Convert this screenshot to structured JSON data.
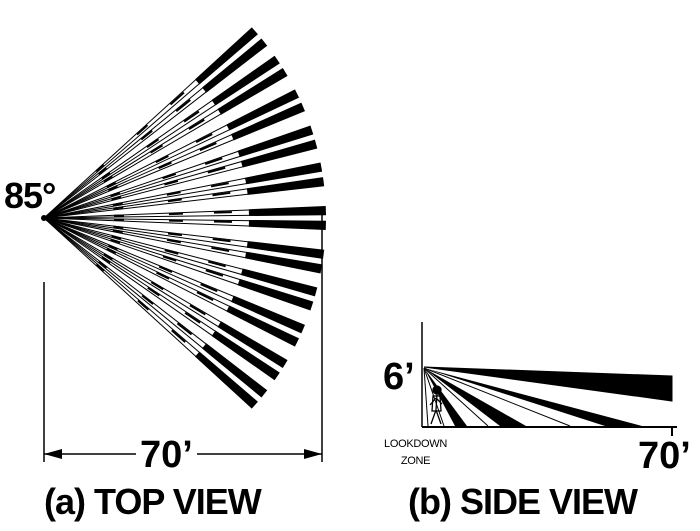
{
  "top_view": {
    "angle_label": "85°",
    "width_label": "70’",
    "caption": "(a) TOP VIEW"
  },
  "side_view": {
    "height_label": "6’",
    "range_label": "70’",
    "lookdown_label": "LOOKDOWN",
    "zone_label": "ZONE",
    "caption": "(b) SIDE VIEW"
  },
  "colors": {
    "ink": "#000000",
    "background": "#ffffff"
  }
}
